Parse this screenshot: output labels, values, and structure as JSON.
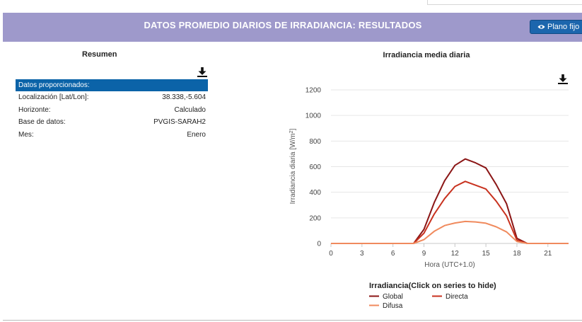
{
  "header": {
    "title": "DATOS PROMEDIO DIARIOS DE IRRADIANCIA: RESULTADOS",
    "plano_button": "Plano fijo"
  },
  "summary": {
    "title": "Resumen",
    "table_header": "Datos proporcionados:",
    "rows": [
      {
        "label": "Localización [Lat/Lon]:",
        "value": "38.338,-5.604"
      },
      {
        "label": "Horizonte:",
        "value": "Calculado"
      },
      {
        "label": "Base de datos:",
        "value": "PVGIS-SARAH2"
      },
      {
        "label": "Mes:",
        "value": "Enero"
      }
    ]
  },
  "colors": {
    "header_bg": "#9e99cb",
    "button_bg": "#1c66ad",
    "table_header_bg": "#0b63a8",
    "global": "#8b1616",
    "directa": "#c8321f",
    "difusa": "#f08a5d"
  },
  "chart_data": {
    "type": "line",
    "title": "Irradiancia media diaria",
    "xlabel": "Hora (UTC+1.0)",
    "ylabel": "Irradiancia diaria [W/m²]",
    "x_ticks": [
      0,
      3,
      6,
      9,
      12,
      15,
      18,
      21
    ],
    "y_ticks": [
      0,
      200,
      400,
      600,
      800,
      1000,
      1200
    ],
    "xlim": [
      0,
      23
    ],
    "ylim": [
      0,
      1200
    ],
    "legend_title": "Irradiancia(Click on series to hide)",
    "legend_position": "bottom",
    "x": [
      0,
      1,
      2,
      3,
      4,
      5,
      6,
      7,
      8,
      9,
      10,
      11,
      12,
      13,
      14,
      15,
      16,
      17,
      18,
      19,
      20,
      21,
      22,
      23
    ],
    "series": [
      {
        "name": "Global",
        "color": "#8b1616",
        "values": [
          0,
          0,
          0,
          0,
          0,
          0,
          0,
          0,
          0,
          110,
          320,
          490,
          610,
          660,
          630,
          590,
          460,
          310,
          40,
          0,
          0,
          0,
          0,
          0
        ]
      },
      {
        "name": "Directa",
        "color": "#c8321f",
        "values": [
          0,
          0,
          0,
          0,
          0,
          0,
          0,
          0,
          0,
          80,
          230,
          350,
          445,
          485,
          455,
          425,
          330,
          215,
          25,
          0,
          0,
          0,
          0,
          0
        ]
      },
      {
        "name": "Difusa",
        "color": "#f08a5d",
        "values": [
          0,
          0,
          0,
          0,
          0,
          0,
          0,
          0,
          0,
          30,
          95,
          140,
          160,
          172,
          168,
          158,
          130,
          90,
          15,
          0,
          0,
          0,
          0,
          0
        ]
      }
    ]
  }
}
